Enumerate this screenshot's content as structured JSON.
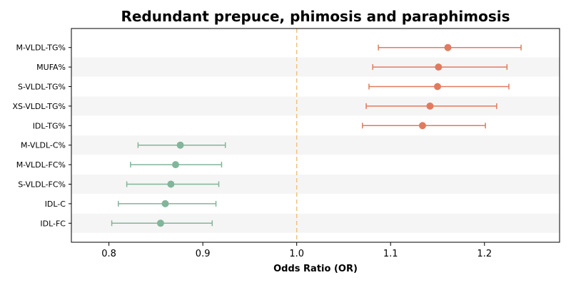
{
  "chart_data": {
    "type": "forest",
    "title": "Redundant prepuce, phimosis and paraphimosis",
    "xlabel": "Odds Ratio (OR)",
    "ylabel": "",
    "xlim": [
      0.76,
      1.28
    ],
    "xticks": [
      "0.8",
      "0.9",
      "1.0",
      "1.1",
      "1.2"
    ],
    "xtick_values": [
      0.8,
      0.9,
      1.0,
      1.1,
      1.2
    ],
    "reference_line": 1.0,
    "reference_color": "#f0c27b",
    "row_stripe_color": "#f5f5f5",
    "grid": false,
    "positive_color": "#e07b5f",
    "negative_color": "#82b59a",
    "rows": [
      {
        "label": "M-VLDL-TG%",
        "or": 1.161,
        "lower": 1.087,
        "upper": 1.239
      },
      {
        "label": "MUFA%",
        "or": 1.151,
        "lower": 1.081,
        "upper": 1.224
      },
      {
        "label": "S-VLDL-TG%",
        "or": 1.15,
        "lower": 1.077,
        "upper": 1.226
      },
      {
        "label": "XS-VLDL-TG%",
        "or": 1.142,
        "lower": 1.074,
        "upper": 1.213
      },
      {
        "label": "IDL-TG%",
        "or": 1.134,
        "lower": 1.07,
        "upper": 1.201
      },
      {
        "label": "M-VLDL-C%",
        "or": 0.876,
        "lower": 0.831,
        "upper": 0.924
      },
      {
        "label": "M-VLDL-FC%",
        "or": 0.871,
        "lower": 0.823,
        "upper": 0.92
      },
      {
        "label": "S-VLDL-FC%",
        "or": 0.866,
        "lower": 0.819,
        "upper": 0.917
      },
      {
        "label": "IDL-C",
        "or": 0.86,
        "lower": 0.81,
        "upper": 0.914
      },
      {
        "label": "IDL-FC",
        "or": 0.855,
        "lower": 0.803,
        "upper": 0.91
      }
    ]
  }
}
